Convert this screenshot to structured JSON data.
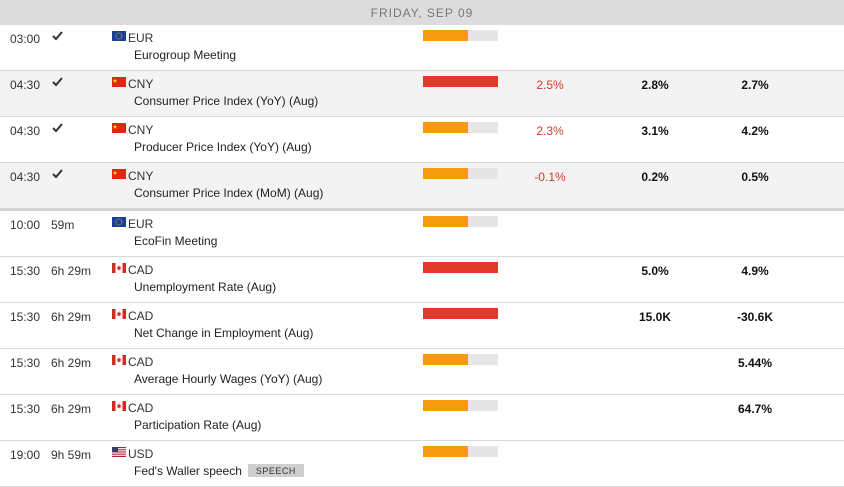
{
  "header": {
    "day_label": "FRIDAY, SEP 09"
  },
  "colors": {
    "high_impact": "#e0382a",
    "medium_impact": "#f79a0d",
    "impact_track": "#e6e6e6",
    "actual_text": "#d03a2b"
  },
  "events": [
    {
      "time": "03:00",
      "status": "",
      "done": true,
      "currency": "EUR",
      "flag": "eu-flag",
      "name": "Eurogroup Meeting",
      "badge": "",
      "impact_level": 0.6,
      "impact_color": "#f79a0d",
      "actual": "",
      "consensus": "",
      "previous": ""
    },
    {
      "time": "04:30",
      "status": "",
      "done": true,
      "currency": "CNY",
      "flag": "cn-flag",
      "name": "Consumer Price Index (YoY) (Aug)",
      "badge": "",
      "impact_level": 1.0,
      "impact_color": "#e0382a",
      "actual": "2.5%",
      "consensus": "2.8%",
      "previous": "2.7%"
    },
    {
      "time": "04:30",
      "status": "",
      "done": true,
      "currency": "CNY",
      "flag": "cn-flag",
      "name": "Producer Price Index (YoY) (Aug)",
      "badge": "",
      "impact_level": 0.6,
      "impact_color": "#f79a0d",
      "actual": "2.3%",
      "consensus": "3.1%",
      "previous": "4.2%"
    },
    {
      "time": "04:30",
      "status": "",
      "done": true,
      "currency": "CNY",
      "flag": "cn-flag",
      "name": "Consumer Price Index (MoM) (Aug)",
      "badge": "",
      "impact_level": 0.6,
      "impact_color": "#f79a0d",
      "actual": "-0.1%",
      "consensus": "0.2%",
      "previous": "0.5%"
    },
    {
      "time": "10:00",
      "status": "59m",
      "done": false,
      "currency": "EUR",
      "flag": "eu-flag",
      "name": "EcoFin Meeting",
      "badge": "",
      "impact_level": 0.6,
      "impact_color": "#f79a0d",
      "actual": "",
      "consensus": "",
      "previous": ""
    },
    {
      "time": "15:30",
      "status": "6h 29m",
      "done": false,
      "currency": "CAD",
      "flag": "ca-flag",
      "name": "Unemployment Rate (Aug)",
      "badge": "",
      "impact_level": 1.0,
      "impact_color": "#e0382a",
      "actual": "",
      "consensus": "5.0%",
      "previous": "4.9%"
    },
    {
      "time": "15:30",
      "status": "6h 29m",
      "done": false,
      "currency": "CAD",
      "flag": "ca-flag",
      "name": "Net Change in Employment (Aug)",
      "badge": "",
      "impact_level": 1.0,
      "impact_color": "#e0382a",
      "actual": "",
      "consensus": "15.0K",
      "previous": "-30.6K"
    },
    {
      "time": "15:30",
      "status": "6h 29m",
      "done": false,
      "currency": "CAD",
      "flag": "ca-flag",
      "name": "Average Hourly Wages (YoY) (Aug)",
      "badge": "",
      "impact_level": 0.6,
      "impact_color": "#f79a0d",
      "actual": "",
      "consensus": "",
      "previous": "5.44%"
    },
    {
      "time": "15:30",
      "status": "6h 29m",
      "done": false,
      "currency": "CAD",
      "flag": "ca-flag",
      "name": "Participation Rate (Aug)",
      "badge": "",
      "impact_level": 0.6,
      "impact_color": "#f79a0d",
      "actual": "",
      "consensus": "",
      "previous": "64.7%"
    },
    {
      "time": "19:00",
      "status": "9h 59m",
      "done": false,
      "currency": "USD",
      "flag": "us-flag",
      "name": "Fed's Waller speech",
      "badge": "SPEECH",
      "impact_level": 0.6,
      "impact_color": "#f79a0d",
      "actual": "",
      "consensus": "",
      "previous": ""
    }
  ]
}
